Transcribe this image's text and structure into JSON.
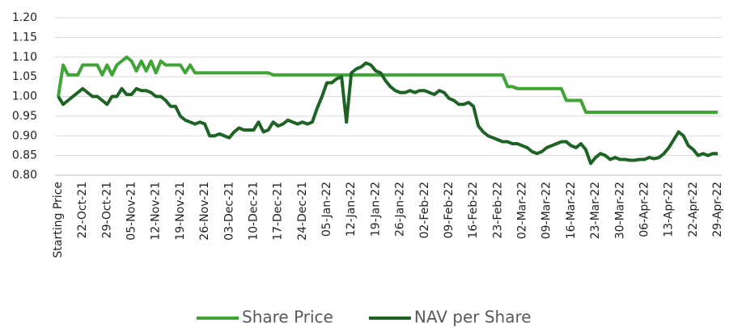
{
  "chart_data": {
    "type": "line",
    "categories": [
      "Starting Price",
      null,
      null,
      null,
      null,
      "22-Oct-21",
      null,
      null,
      null,
      null,
      "29-Oct-21",
      null,
      null,
      null,
      null,
      "05-Nov-21",
      null,
      null,
      null,
      null,
      "12-Nov-21",
      null,
      null,
      null,
      null,
      "19-Nov-21",
      null,
      null,
      null,
      null,
      "26-Nov-21",
      null,
      null,
      null,
      null,
      "03-Dec-21",
      null,
      null,
      null,
      null,
      "10-Dec-21",
      null,
      null,
      null,
      null,
      "17-Dec-21",
      null,
      null,
      null,
      null,
      "24-Dec-21",
      null,
      null,
      null,
      null,
      "05-Jan-22",
      null,
      null,
      null,
      null,
      "12-Jan-22",
      null,
      null,
      null,
      null,
      "19-Jan-22",
      null,
      null,
      null,
      null,
      "26-Jan-22",
      null,
      null,
      null,
      null,
      "02-Feb-22",
      null,
      null,
      null,
      null,
      "09-Feb-22",
      null,
      null,
      null,
      null,
      "16-Feb-22",
      null,
      null,
      null,
      null,
      "23-Feb-22",
      null,
      null,
      null,
      null,
      "02-Mar-22",
      null,
      null,
      null,
      null,
      "09-Mar-22",
      null,
      null,
      null,
      null,
      "16-Mar-22",
      null,
      null,
      null,
      null,
      "23-Mar-22",
      null,
      null,
      null,
      null,
      "30-Mar-22",
      null,
      null,
      null,
      null,
      "06-Apr-22",
      null,
      null,
      null,
      null,
      "13-Apr-22",
      null,
      null,
      null,
      null,
      "22-Apr-22",
      null,
      null,
      null,
      null,
      "29-Apr-22"
    ],
    "series": [
      {
        "name": "Share Price",
        "color": "#3fa535",
        "values": [
          1.0,
          1.08,
          1.055,
          1.055,
          1.055,
          1.08,
          1.08,
          1.08,
          1.08,
          1.055,
          1.08,
          1.055,
          1.08,
          1.09,
          1.1,
          1.09,
          1.065,
          1.09,
          1.065,
          1.09,
          1.06,
          1.09,
          1.08,
          1.08,
          1.08,
          1.08,
          1.06,
          1.08,
          1.06,
          1.06,
          1.06,
          1.06,
          1.06,
          1.06,
          1.06,
          1.06,
          1.06,
          1.06,
          1.06,
          1.06,
          1.06,
          1.06,
          1.06,
          1.06,
          1.055,
          1.055,
          1.055,
          1.055,
          1.055,
          1.055,
          1.055,
          1.055,
          1.055,
          1.055,
          1.055,
          1.055,
          1.055,
          1.055,
          1.055,
          1.055,
          1.055,
          1.055,
          1.055,
          1.055,
          1.055,
          1.055,
          1.055,
          1.055,
          1.055,
          1.055,
          1.055,
          1.055,
          1.055,
          1.055,
          1.055,
          1.055,
          1.055,
          1.055,
          1.055,
          1.055,
          1.055,
          1.055,
          1.055,
          1.055,
          1.055,
          1.055,
          1.055,
          1.055,
          1.055,
          1.055,
          1.055,
          1.055,
          1.025,
          1.025,
          1.02,
          1.02,
          1.02,
          1.02,
          1.02,
          1.02,
          1.02,
          1.02,
          1.02,
          1.02,
          0.99,
          0.99,
          0.99,
          0.99,
          0.96,
          0.96,
          0.96,
          0.96,
          0.96,
          0.96,
          0.96,
          0.96,
          0.96,
          0.96,
          0.96,
          0.96,
          0.96,
          0.96,
          0.96,
          0.96,
          0.96,
          0.96,
          0.96,
          0.96,
          0.96,
          0.96,
          0.96,
          0.96,
          0.96,
          0.96,
          0.96,
          0.96
        ]
      },
      {
        "name": "NAV per Share",
        "color": "#1d6324",
        "values": [
          1.0,
          0.98,
          0.99,
          1.0,
          1.01,
          1.02,
          1.01,
          1.0,
          1.0,
          0.99,
          0.98,
          1.0,
          1.0,
          1.02,
          1.005,
          1.005,
          1.02,
          1.015,
          1.015,
          1.01,
          1.0,
          1.0,
          0.99,
          0.975,
          0.975,
          0.95,
          0.94,
          0.935,
          0.93,
          0.935,
          0.93,
          0.9,
          0.9,
          0.905,
          0.9,
          0.895,
          0.91,
          0.92,
          0.915,
          0.915,
          0.915,
          0.935,
          0.91,
          0.915,
          0.935,
          0.925,
          0.93,
          0.94,
          0.935,
          0.93,
          0.935,
          0.93,
          0.935,
          0.97,
          1.0,
          1.035,
          1.035,
          1.045,
          1.05,
          0.935,
          1.06,
          1.07,
          1.075,
          1.085,
          1.08,
          1.065,
          1.06,
          1.04,
          1.025,
          1.015,
          1.01,
          1.01,
          1.015,
          1.01,
          1.015,
          1.015,
          1.01,
          1.005,
          1.015,
          1.01,
          0.995,
          0.99,
          0.98,
          0.98,
          0.985,
          0.975,
          0.925,
          0.91,
          0.9,
          0.895,
          0.89,
          0.885,
          0.885,
          0.88,
          0.88,
          0.875,
          0.87,
          0.86,
          0.855,
          0.86,
          0.87,
          0.875,
          0.88,
          0.885,
          0.885,
          0.875,
          0.87,
          0.88,
          0.865,
          0.83,
          0.845,
          0.855,
          0.85,
          0.84,
          0.845,
          0.84,
          0.84,
          0.838,
          0.838,
          0.84,
          0.84,
          0.845,
          0.842,
          0.845,
          0.855,
          0.87,
          0.89,
          0.91,
          0.9,
          0.875,
          0.865,
          0.85,
          0.855,
          0.85,
          0.855,
          0.855
        ]
      }
    ],
    "ylim": [
      0.8,
      1.2
    ],
    "yticks": [
      {
        "value": 0.8,
        "label": "0.80"
      },
      0.85,
      {
        "value": 0.9,
        "label": "0.90"
      },
      0.95,
      {
        "value": 1.0,
        "label": "1.00"
      },
      1.05,
      {
        "value": 1.1,
        "label": "1.10"
      },
      1.15,
      {
        "value": 1.2,
        "label": "1.20"
      }
    ],
    "grid": true,
    "legend": "bottom"
  }
}
